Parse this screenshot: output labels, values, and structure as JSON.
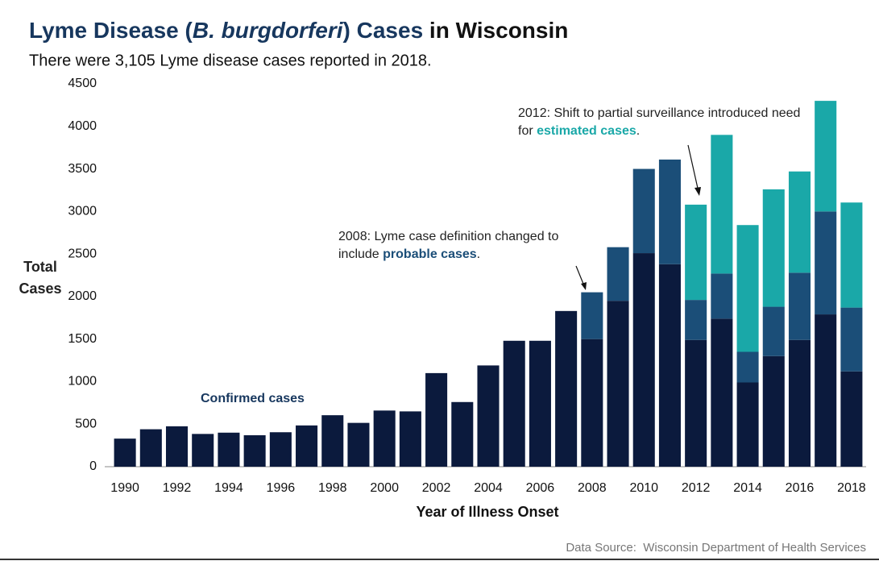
{
  "chart_data": {
    "type": "stacked_bar",
    "title": [
      "Lyme Disease (",
      "B. burgdorferi",
      ") Cases",
      " in Wisconsin"
    ],
    "subtitle": "There were 3,105 Lyme disease cases reported in 2018.",
    "y_label": "Total Cases",
    "x_label": "Year of Illness Onset",
    "source": "Data Source:  Wisconsin Department of Health Services",
    "categories": [
      "1990",
      null,
      "1992",
      null,
      "1994",
      null,
      "1996",
      null,
      "1998",
      null,
      "2000",
      null,
      "2002",
      null,
      "2004",
      null,
      "2006",
      null,
      "2008",
      null,
      "2010",
      null,
      "2012",
      null,
      "2014",
      null,
      "2016",
      null,
      "2018"
    ],
    "series": [
      {
        "name": "Confirmed cases",
        "color": "#0b1a3d",
        "values": [
          330,
          440,
          475,
          385,
          400,
          370,
          405,
          485,
          605,
          515,
          660,
          650,
          1100,
          760,
          1190,
          1480,
          1480,
          1830,
          1500,
          1950,
          2510,
          2380,
          1490,
          1740,
          990,
          1300,
          1490,
          1790,
          1120
        ]
      },
      {
        "name": "probable cases",
        "color": "#1b4e78",
        "values": [
          null,
          null,
          null,
          null,
          null,
          null,
          null,
          null,
          null,
          null,
          null,
          null,
          null,
          null,
          null,
          null,
          null,
          null,
          550,
          630,
          990,
          1230,
          470,
          530,
          360,
          580,
          790,
          1210,
          750
        ]
      },
      {
        "name": "estimated cases",
        "color": "#1aa8a8",
        "values": [
          null,
          null,
          null,
          null,
          null,
          null,
          null,
          null,
          null,
          null,
          null,
          null,
          null,
          null,
          null,
          null,
          null,
          null,
          null,
          null,
          null,
          null,
          1120,
          1630,
          1490,
          1380,
          1190,
          1300,
          1235
        ]
      }
    ],
    "annotations": [
      {
        "text": [
          "2008: Lyme case definition changed to include ",
          "."
        ]
      },
      {
        "text": [
          "2012: Shift to partial surveillance introduced need for ",
          "."
        ]
      }
    ],
    "ylim": [
      0,
      4500
    ],
    "yticks": [
      0,
      500,
      1000,
      1500,
      2000,
      2500,
      3000,
      3500,
      4000,
      4500
    ]
  }
}
